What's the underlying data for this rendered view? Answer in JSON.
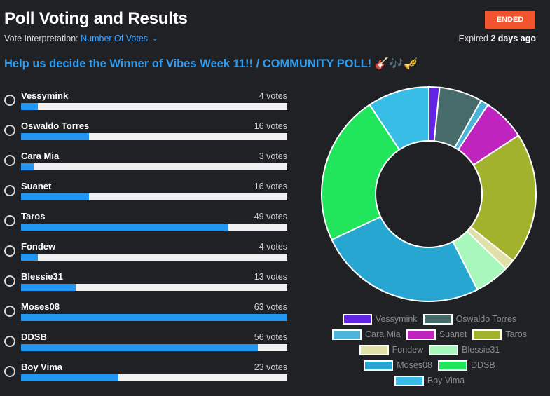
{
  "header": {
    "title": "Poll Voting and Results",
    "interpretation_label": "Vote Interpretation:",
    "interpretation_value": "Number Of Votes",
    "status": "ENDED",
    "expiry_prefix": "Expired",
    "expiry_value": "2 days ago"
  },
  "poll": {
    "question": "Help us decide the Winner of Vibes Week 11!! / COMMUNITY POLL! 🎸🎶🎺",
    "max_votes": 63,
    "options": [
      {
        "name": "Vessymink",
        "votes": 4,
        "votes_text": "4 votes",
        "color": "#6424e8"
      },
      {
        "name": "Oswaldo Torres",
        "votes": 16,
        "votes_text": "16 votes",
        "color": "#476b6b"
      },
      {
        "name": "Cara Mia",
        "votes": 3,
        "votes_text": "3 votes",
        "color": "#4ab5d9"
      },
      {
        "name": "Suanet",
        "votes": 16,
        "votes_text": "16 votes",
        "color": "#bf24bf"
      },
      {
        "name": "Taros",
        "votes": 49,
        "votes_text": "49 votes",
        "color": "#a2b22d"
      },
      {
        "name": "Fondew",
        "votes": 4,
        "votes_text": "4 votes",
        "color": "#e0e0a8"
      },
      {
        "name": "Blessie31",
        "votes": 13,
        "votes_text": "13 votes",
        "color": "#a8f7bd"
      },
      {
        "name": "Moses08",
        "votes": 63,
        "votes_text": "63 votes",
        "color": "#26a6d1"
      },
      {
        "name": "DDSB",
        "votes": 56,
        "votes_text": "56 votes",
        "color": "#21e65b"
      },
      {
        "name": "Boy Vima",
        "votes": 23,
        "votes_text": "23 votes",
        "color": "#38bde6"
      }
    ]
  },
  "chart_data": {
    "type": "pie",
    "categories": [
      "Vessymink",
      "Oswaldo Torres",
      "Cara Mia",
      "Suanet",
      "Taros",
      "Fondew",
      "Blessie31",
      "Moses08",
      "DDSB",
      "Boy Vima"
    ],
    "values": [
      4,
      16,
      3,
      16,
      49,
      4,
      13,
      63,
      56,
      23
    ],
    "colors": [
      "#6424e8",
      "#476b6b",
      "#4ab5d9",
      "#bf24bf",
      "#a2b22d",
      "#e0e0a8",
      "#a8f7bd",
      "#26a6d1",
      "#21e65b",
      "#38bde6"
    ],
    "donut": true,
    "legend_position": "bottom"
  }
}
